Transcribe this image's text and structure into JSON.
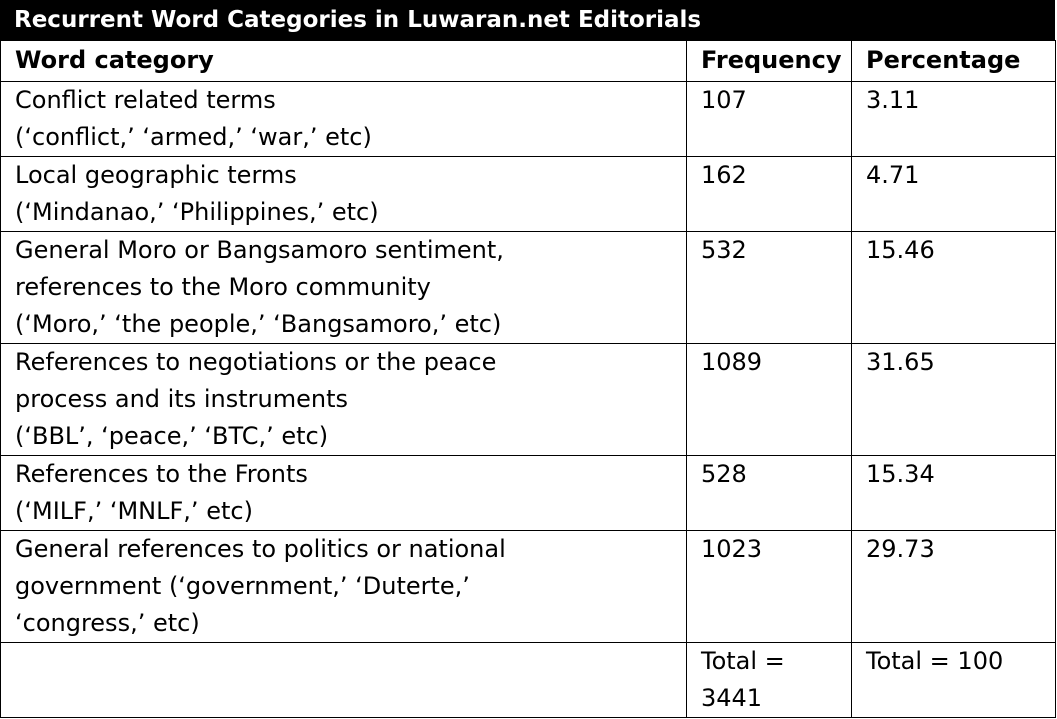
{
  "title": "Recurrent Word Categories in Luwaran.net Editorials",
  "table": {
    "header": {
      "category": "Word category",
      "frequency": "Frequency",
      "percentage": "Percentage"
    },
    "rows": [
      {
        "category": [
          "Conflict related terms",
          "(‘conflict,’ ‘armed,’ ‘war,’ etc)"
        ],
        "frequency": "107",
        "percentage": "3.11"
      },
      {
        "category": [
          "Local geographic terms",
          "(‘Mindanao,’ ‘Philippines,’ etc)"
        ],
        "frequency": "162",
        "percentage": "4.71"
      },
      {
        "category": [
          "General Moro or Bangsamoro sentiment,",
          "references to the Moro community",
          "(‘Moro,’ ‘the people,’ ‘Bangsamoro,’ etc)"
        ],
        "frequency": "532",
        "percentage": "15.46"
      },
      {
        "category": [
          "References to negotiations or the peace",
          "process and its instruments",
          "(‘BBL’, ‘peace,’ ‘BTC,’ etc)"
        ],
        "frequency": "1089",
        "percentage": "31.65"
      },
      {
        "category": [
          "References to the Fronts",
          "(‘MILF,’ ‘MNLF,’ etc)"
        ],
        "frequency": "528",
        "percentage": "15.34"
      },
      {
        "category": [
          "General references to politics or national",
          "government (‘government,’ ‘Duterte,’",
          "‘congress,’ etc)"
        ],
        "frequency": "1023",
        "percentage": "29.73"
      }
    ],
    "total": {
      "frequency": [
        "Total =",
        "3441"
      ],
      "percentage": [
        "Total = 100"
      ]
    }
  }
}
